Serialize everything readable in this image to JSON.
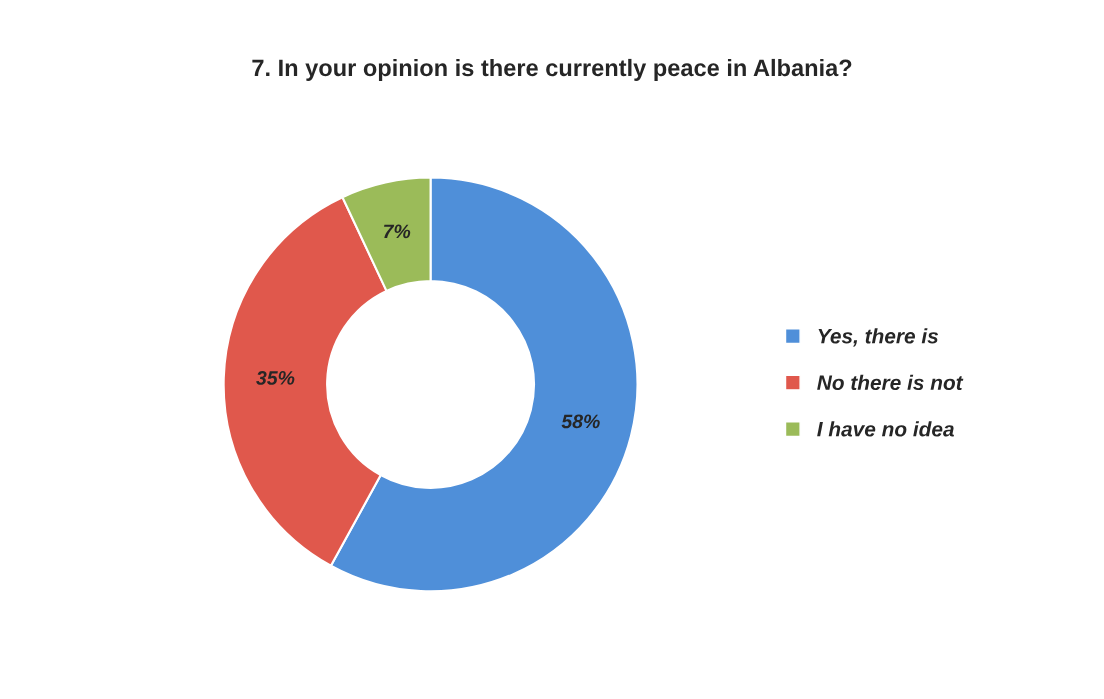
{
  "chart_data": {
    "type": "donut",
    "title": "7. In your opinion is there currently peace in Albania?",
    "categories": [
      "Yes, there is",
      "No there is not",
      "I have no idea"
    ],
    "values": [
      58,
      35,
      7
    ],
    "colors": [
      "#4f8fd9",
      "#e0584c",
      "#9bbb59"
    ],
    "value_labels": [
      "58%",
      "35%",
      "7%"
    ],
    "legend": "right"
  }
}
